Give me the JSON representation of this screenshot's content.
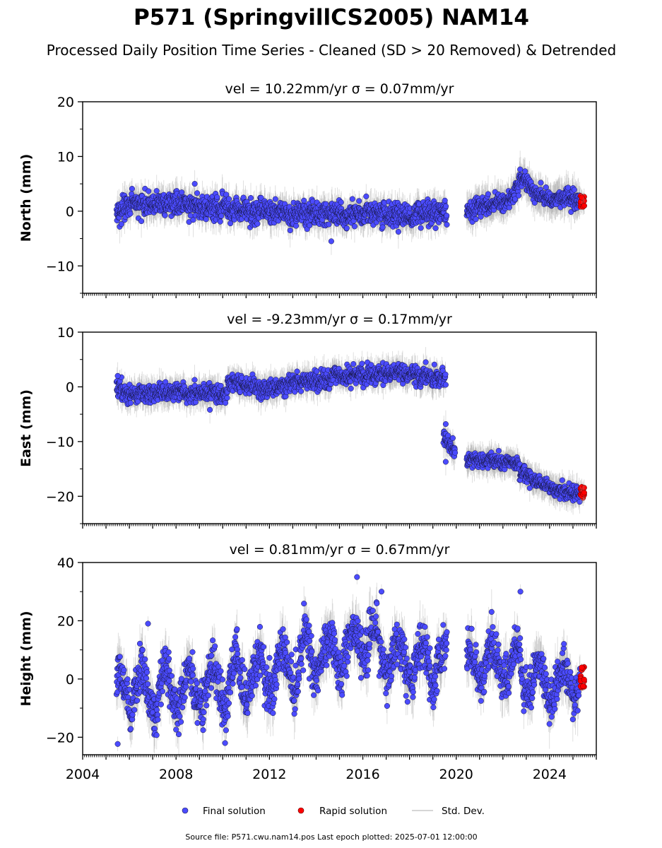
{
  "title": "P571 (SpringvillCS2005) NAM14",
  "subtitle": "Processed Daily Position Time Series - Cleaned (SD > 20 Removed) & Detrended",
  "footer": "Source file: P571.cwu.nam14.pos  Last epoch plotted: 2025-07-01 12:00:00",
  "legend": {
    "final": "Final solution",
    "rapid": "Rapid solution",
    "stddev": "Std. Dev.",
    "final_color": "#4b4bff",
    "rapid_color": "#ff0000",
    "stddev_color": "#b3b3b3"
  },
  "chart_data": [
    {
      "type": "scatter",
      "title": "vel = 10.22mm/yr   σ = 0.07mm/yr",
      "ylabel": "North (mm)",
      "xlim": [
        2004.0,
        2026.0
      ],
      "ylim": [
        -15,
        20
      ],
      "yticks": [
        -10,
        0,
        10,
        20
      ],
      "ytick_labels": [
        "−10",
        "0",
        "10",
        "20"
      ],
      "xtick_labels": [
        "2004",
        "2008",
        "2012",
        "2016",
        "2020",
        "2024"
      ],
      "show_xtick_labels": false,
      "segments": [
        {
          "start": 2005.45,
          "end": 2019.6,
          "mean": [
            [
              2005.45,
              0.0
            ],
            [
              2006.5,
              1.5
            ],
            [
              2008,
              1.0
            ],
            [
              2010,
              0.6
            ],
            [
              2012,
              -0.2
            ],
            [
              2014,
              -0.6
            ],
            [
              2016,
              -0.5
            ],
            [
              2018,
              -0.9
            ],
            [
              2019.6,
              -0.3
            ]
          ],
          "noise": 1.3,
          "err": 2.0
        },
        {
          "start": 2020.45,
          "end": 2025.3,
          "mean": [
            [
              2020.45,
              0.3
            ],
            [
              2021.5,
              1.3
            ],
            [
              2022.3,
              2.0
            ],
            [
              2022.9,
              6.5
            ],
            [
              2023.3,
              3.5
            ],
            [
              2024,
              2.2
            ],
            [
              2025.3,
              2.0
            ]
          ],
          "noise": 1.0,
          "err": 2.2
        }
      ],
      "outliers": [
        [
          2008.8,
          5.0
        ],
        [
          2014.65,
          -5.5
        ]
      ],
      "rapid": {
        "start": 2025.33,
        "end": 2025.48,
        "mean": 1.8,
        "spread": 1.0
      },
      "seed": 11
    },
    {
      "type": "scatter",
      "title": "vel = -9.23mm/yr   σ = 0.17mm/yr",
      "ylabel": "East (mm)",
      "xlim": [
        2004.0,
        2026.0
      ],
      "ylim": [
        -25,
        10
      ],
      "yticks": [
        -20,
        -10,
        0,
        10
      ],
      "ytick_labels": [
        "−20",
        "−10",
        "0",
        "10"
      ],
      "xtick_labels": [
        "2004",
        "2008",
        "2012",
        "2016",
        "2020",
        "2024"
      ],
      "show_xtick_labels": false,
      "segments": [
        {
          "start": 2005.45,
          "end": 2010.2,
          "mean": [
            [
              2005.45,
              0.3
            ],
            [
              2006,
              -1.5
            ],
            [
              2008,
              -0.8
            ],
            [
              2010.2,
              -1.2
            ]
          ],
          "noise": 1.0,
          "err": 1.8
        },
        {
          "start": 2010.2,
          "end": 2019.55,
          "mean": [
            [
              2010.2,
              0.8
            ],
            [
              2012,
              -0.2
            ],
            [
              2013.5,
              1.2
            ],
            [
              2015.5,
              2.0
            ],
            [
              2017,
              2.8
            ],
            [
              2018.5,
              1.8
            ],
            [
              2019.55,
              1.5
            ]
          ],
          "noise": 1.0,
          "err": 1.8
        },
        {
          "start": 2019.45,
          "end": 2019.95,
          "mean": [
            [
              2019.45,
              -9.0
            ],
            [
              2019.95,
              -12.0
            ]
          ],
          "noise": 1.0,
          "err": 1.8
        },
        {
          "start": 2020.45,
          "end": 2025.3,
          "mean": [
            [
              2020.45,
              -13.5
            ],
            [
              2022,
              -13.5
            ],
            [
              2022.5,
              -14.0
            ],
            [
              2023.3,
              -17.0
            ],
            [
              2024,
              -18.5
            ],
            [
              2025.3,
              -19.5
            ]
          ],
          "noise": 0.8,
          "err": 1.8
        }
      ],
      "outliers": [
        [
          2005.5,
          2.0
        ],
        [
          2009.45,
          -4.2
        ],
        [
          2019.55,
          -6.8
        ],
        [
          2019.55,
          -13.7
        ],
        [
          2023.15,
          -18.5
        ]
      ],
      "rapid": {
        "start": 2025.33,
        "end": 2025.48,
        "mean": -19.3,
        "spread": 1.0
      },
      "seed": 23
    },
    {
      "type": "scatter",
      "title": "vel = 0.81mm/yr   σ = 0.67mm/yr",
      "ylabel": "Height (mm)",
      "xlim": [
        2004.0,
        2026.0
      ],
      "ylim": [
        -26,
        40
      ],
      "yticks": [
        -20,
        0,
        20,
        40
      ],
      "ytick_labels": [
        "−20",
        "0",
        "20",
        "40"
      ],
      "xtick_labels": [
        "2004",
        "2008",
        "2012",
        "2016",
        "2020",
        "2024"
      ],
      "show_xtick_labels": true,
      "segments": [
        {
          "start": 2005.45,
          "end": 2019.6,
          "mean": [
            [
              2005.45,
              -4
            ],
            [
              2008,
              -3
            ],
            [
              2010,
              -2
            ],
            [
              2012,
              2
            ],
            [
              2014,
              8
            ],
            [
              2016,
              13
            ],
            [
              2017.5,
              7
            ],
            [
              2019.6,
              5
            ]
          ],
          "noise": 5.0,
          "amp": 7.0,
          "err": 5.5
        },
        {
          "start": 2020.45,
          "end": 2025.3,
          "mean": [
            [
              2020.45,
              5
            ],
            [
              2022,
              6
            ],
            [
              2023,
              2
            ],
            [
              2024,
              -2
            ],
            [
              2025.3,
              1
            ]
          ],
          "noise": 4.5,
          "amp": 6.0,
          "err": 5.5
        }
      ],
      "outliers": [
        [
          2005.5,
          -22.3
        ],
        [
          2006.8,
          19
        ],
        [
          2010.1,
          -22
        ],
        [
          2015.75,
          35
        ],
        [
          2016.8,
          30
        ],
        [
          2022.75,
          30
        ]
      ],
      "rapid": {
        "start": 2025.33,
        "end": 2025.48,
        "mean": 1.0,
        "spread": 4.0
      },
      "seed": 37
    }
  ]
}
